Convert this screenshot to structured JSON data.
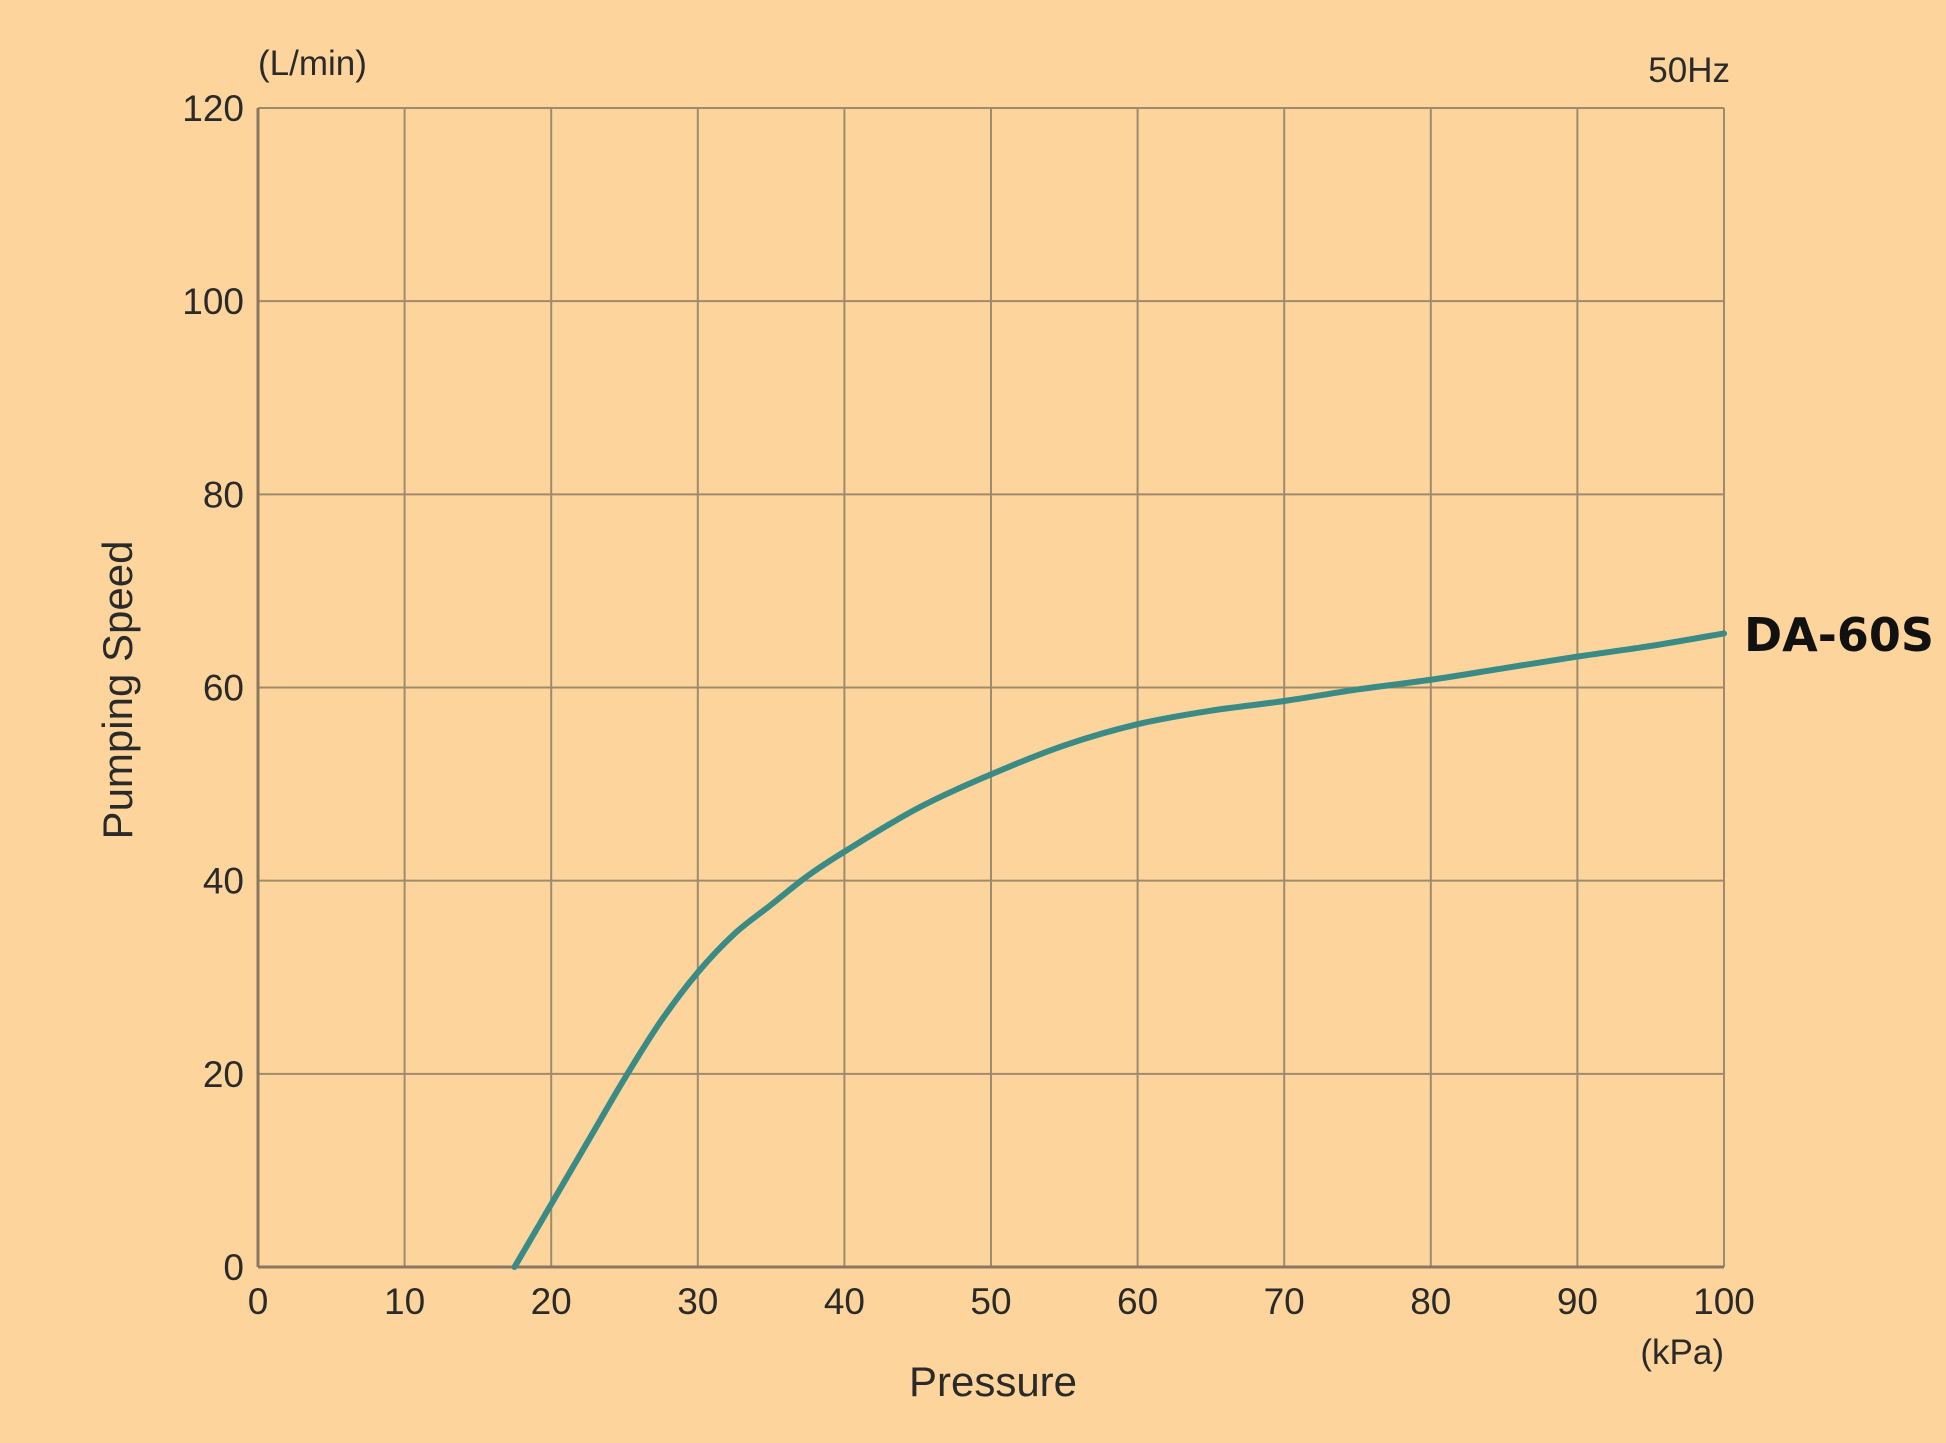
{
  "chart_data": {
    "type": "line",
    "xlabel": "Pressure",
    "ylabel": "Pumping Speed",
    "x_unit": "(kPa)",
    "y_unit": "(L/min)",
    "frequency_note": "50Hz",
    "xlim": [
      0,
      100
    ],
    "ylim": [
      0,
      120
    ],
    "x_ticks": [
      "0",
      "10",
      "20",
      "30",
      "40",
      "50",
      "60",
      "70",
      "80",
      "90",
      "100"
    ],
    "y_ticks": [
      "0",
      "20",
      "40",
      "60",
      "80",
      "100",
      "120"
    ],
    "grid": true,
    "series": [
      {
        "name": "DA-60S",
        "color": "#3a8a86",
        "x": [
          17.5,
          20,
          22.5,
          25,
          27.5,
          30,
          32.5,
          35,
          37.5,
          40,
          45,
          50,
          55,
          60,
          65,
          70,
          75,
          80,
          85,
          90,
          95,
          100
        ],
        "y": [
          0,
          6.5,
          13,
          19.5,
          25.5,
          30.5,
          34.5,
          37.5,
          40.5,
          43,
          47.5,
          51,
          54,
          56.2,
          57.6,
          58.6,
          59.8,
          60.8,
          62,
          63.2,
          64.3,
          65.6
        ]
      }
    ]
  },
  "colors": {
    "background": "#fdd59c",
    "grid": "#9e8a6c",
    "axis": "#8a7760",
    "line": "#3a8a86",
    "text": "#2a2a2a"
  }
}
